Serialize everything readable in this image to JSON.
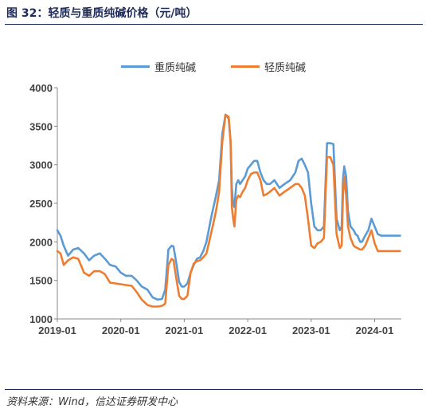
{
  "title": "图 32：轻质与重质纯碱价格（元/吨）",
  "source": "资料来源：Wind，信达证券研发中心",
  "chart_data": {
    "type": "line",
    "title": "图 32：轻质与重质纯碱价格（元/吨）",
    "xlabel": "",
    "ylabel": "",
    "ylim": [
      1000,
      4000
    ],
    "yticks": [
      "4000",
      "3500",
      "3000",
      "2500",
      "2000",
      "1500",
      "1000"
    ],
    "xticks": [
      "2019-01",
      "2020-01",
      "2021-01",
      "2022-01",
      "2023-01",
      "2024-01"
    ],
    "xlim": [
      2019.0,
      2024.42
    ],
    "legend_position": "top",
    "grid": false,
    "series": [
      {
        "name": "重质纯碱",
        "color": "#5b9bd5",
        "x": [
          2019.0,
          2019.05,
          2019.1,
          2019.17,
          2019.25,
          2019.33,
          2019.42,
          2019.5,
          2019.58,
          2019.67,
          2019.75,
          2019.83,
          2019.92,
          2020.0,
          2020.08,
          2020.17,
          2020.25,
          2020.33,
          2020.42,
          2020.5,
          2020.58,
          2020.65,
          2020.7,
          2020.75,
          2020.8,
          2020.83,
          2020.88,
          2020.92,
          2020.96,
          2021.0,
          2021.05,
          2021.1,
          2021.15,
          2021.2,
          2021.25,
          2021.3,
          2021.35,
          2021.42,
          2021.5,
          2021.55,
          2021.6,
          2021.65,
          2021.7,
          2021.73,
          2021.75,
          2021.77,
          2021.79,
          2021.82,
          2021.85,
          2021.88,
          2021.92,
          2021.96,
          2022.0,
          2022.05,
          2022.1,
          2022.15,
          2022.2,
          2022.25,
          2022.3,
          2022.35,
          2022.42,
          2022.5,
          2022.58,
          2022.67,
          2022.75,
          2022.8,
          2022.85,
          2022.9,
          2022.95,
          2023.0,
          2023.05,
          2023.1,
          2023.15,
          2023.2,
          2023.25,
          2023.3,
          2023.35,
          2023.4,
          2023.45,
          2023.48,
          2023.5,
          2023.52,
          2023.55,
          2023.58,
          2023.62,
          2023.67,
          2023.7,
          2023.73,
          2023.77,
          2023.8,
          2023.85,
          2023.9,
          2023.95,
          2024.0,
          2024.05,
          2024.1,
          2024.15,
          2024.2,
          2024.25,
          2024.3,
          2024.35,
          2024.4
        ],
        "values": [
          2150,
          2080,
          1950,
          1820,
          1900,
          1920,
          1850,
          1760,
          1820,
          1850,
          1780,
          1700,
          1680,
          1600,
          1560,
          1560,
          1500,
          1420,
          1380,
          1280,
          1250,
          1260,
          1380,
          1900,
          1950,
          1940,
          1700,
          1480,
          1420,
          1420,
          1460,
          1600,
          1700,
          1780,
          1800,
          1880,
          2000,
          2300,
          2600,
          2800,
          3400,
          3650,
          3600,
          3300,
          2700,
          2500,
          2450,
          2750,
          2800,
          2750,
          2800,
          2850,
          2950,
          3000,
          3050,
          3050,
          2900,
          2800,
          2750,
          2750,
          2800,
          2700,
          2750,
          2800,
          2900,
          3050,
          3080,
          3000,
          2900,
          2500,
          2200,
          2150,
          2150,
          2200,
          3280,
          3280,
          3270,
          2300,
          2150,
          2200,
          2800,
          2980,
          2850,
          2400,
          2200,
          2150,
          2100,
          2080,
          2000,
          2000,
          2080,
          2150,
          2300,
          2200,
          2100,
          2080,
          2080,
          2080,
          2080,
          2080,
          2080,
          2080
        ]
      },
      {
        "name": "轻质纯碱",
        "color": "#ed7d31",
        "x": [
          2019.0,
          2019.05,
          2019.1,
          2019.17,
          2019.25,
          2019.33,
          2019.42,
          2019.5,
          2019.58,
          2019.67,
          2019.75,
          2019.83,
          2019.92,
          2020.0,
          2020.08,
          2020.17,
          2020.25,
          2020.33,
          2020.42,
          2020.5,
          2020.58,
          2020.65,
          2020.7,
          2020.75,
          2020.8,
          2020.83,
          2020.88,
          2020.92,
          2020.96,
          2021.0,
          2021.05,
          2021.1,
          2021.15,
          2021.2,
          2021.25,
          2021.3,
          2021.35,
          2021.42,
          2021.5,
          2021.55,
          2021.6,
          2021.65,
          2021.7,
          2021.73,
          2021.75,
          2021.77,
          2021.79,
          2021.82,
          2021.85,
          2021.88,
          2021.92,
          2021.96,
          2022.0,
          2022.05,
          2022.1,
          2022.15,
          2022.2,
          2022.25,
          2022.3,
          2022.35,
          2022.42,
          2022.5,
          2022.58,
          2022.67,
          2022.75,
          2022.8,
          2022.85,
          2022.9,
          2022.95,
          2023.0,
          2023.05,
          2023.1,
          2023.15,
          2023.2,
          2023.25,
          2023.3,
          2023.35,
          2023.4,
          2023.45,
          2023.48,
          2023.5,
          2023.52,
          2023.55,
          2023.58,
          2023.62,
          2023.67,
          2023.7,
          2023.73,
          2023.77,
          2023.8,
          2023.85,
          2023.9,
          2023.95,
          2024.0,
          2024.05,
          2024.1,
          2024.15,
          2024.2,
          2024.25,
          2024.3,
          2024.35,
          2024.4
        ],
        "values": [
          1880,
          1850,
          1700,
          1760,
          1800,
          1780,
          1600,
          1560,
          1620,
          1620,
          1580,
          1470,
          1460,
          1450,
          1440,
          1430,
          1350,
          1250,
          1180,
          1160,
          1160,
          1170,
          1200,
          1700,
          1780,
          1760,
          1500,
          1300,
          1260,
          1260,
          1300,
          1600,
          1720,
          1750,
          1760,
          1800,
          1850,
          2100,
          2400,
          2650,
          3300,
          3650,
          3620,
          3300,
          2450,
          2300,
          2200,
          2550,
          2600,
          2580,
          2650,
          2700,
          2800,
          2880,
          2900,
          2900,
          2800,
          2600,
          2620,
          2650,
          2700,
          2600,
          2650,
          2700,
          2750,
          2750,
          2700,
          2600,
          2300,
          1950,
          1920,
          1980,
          2000,
          2050,
          3100,
          3100,
          3000,
          2100,
          1920,
          1950,
          2600,
          2850,
          2600,
          2200,
          2050,
          1950,
          1930,
          1920,
          1900,
          1900,
          1950,
          2050,
          2150,
          1980,
          1880,
          1880,
          1880,
          1880,
          1880,
          1880,
          1880,
          1880
        ]
      }
    ]
  }
}
